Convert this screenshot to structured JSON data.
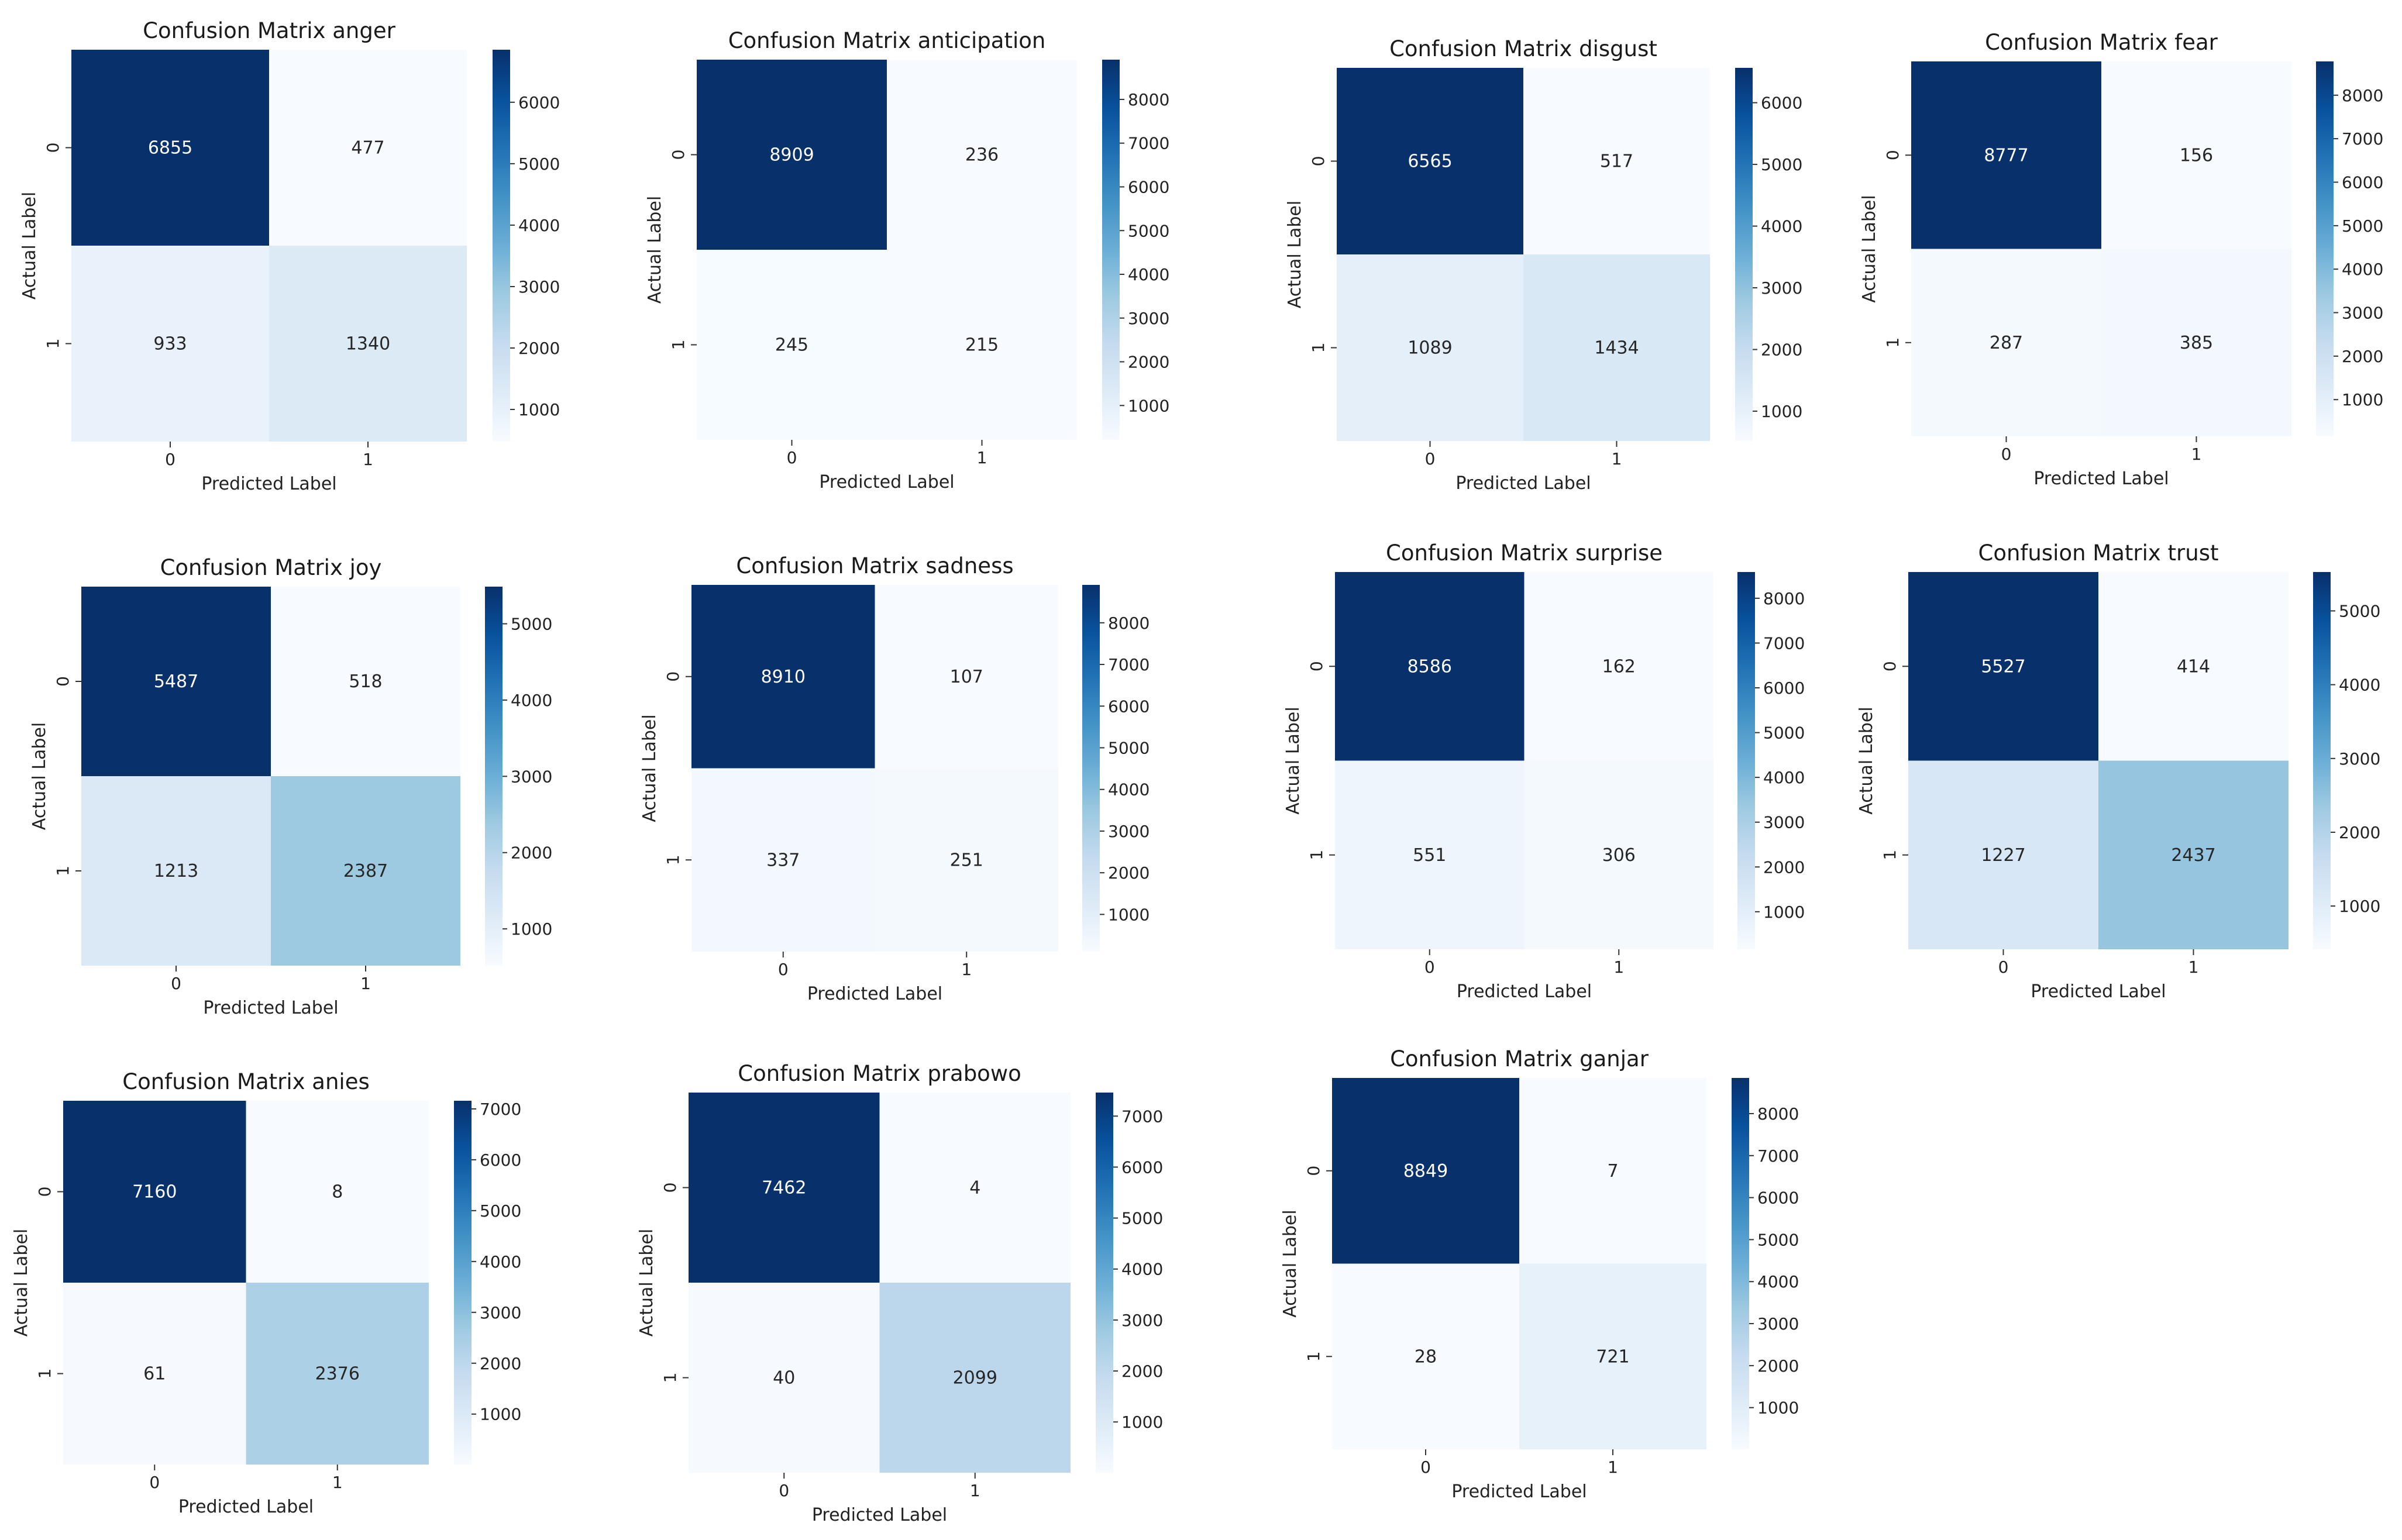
{
  "chart_data": [
    {
      "type": "heatmap",
      "title": "Confusion Matrix anger",
      "xlabel": "Predicted Label",
      "ylabel": "Actual Label",
      "x_categories": [
        "0",
        "1"
      ],
      "y_categories": [
        "0",
        "1"
      ],
      "values": [
        [
          6855,
          477
        ],
        [
          933,
          1340
        ]
      ],
      "colorbar": {
        "cmap": "Blues",
        "ticks": [
          1000,
          2000,
          3000,
          4000,
          5000,
          6000
        ]
      }
    },
    {
      "type": "heatmap",
      "title": "Confusion Matrix anticipation",
      "xlabel": "Predicted Label",
      "ylabel": "Actual Label",
      "x_categories": [
        "0",
        "1"
      ],
      "y_categories": [
        "0",
        "1"
      ],
      "values": [
        [
          8909,
          236
        ],
        [
          245,
          215
        ]
      ],
      "colorbar": {
        "cmap": "Blues",
        "ticks": [
          1000,
          2000,
          3000,
          4000,
          5000,
          6000,
          7000,
          8000
        ]
      }
    },
    {
      "type": "heatmap",
      "title": "Confusion Matrix disgust",
      "xlabel": "Predicted Label",
      "ylabel": "Actual Label",
      "x_categories": [
        "0",
        "1"
      ],
      "y_categories": [
        "0",
        "1"
      ],
      "values": [
        [
          6565,
          517
        ],
        [
          1089,
          1434
        ]
      ],
      "colorbar": {
        "cmap": "Blues",
        "ticks": [
          1000,
          2000,
          3000,
          4000,
          5000,
          6000
        ]
      }
    },
    {
      "type": "heatmap",
      "title": "Confusion Matrix fear",
      "xlabel": "Predicted Label",
      "ylabel": "Actual Label",
      "x_categories": [
        "0",
        "1"
      ],
      "y_categories": [
        "0",
        "1"
      ],
      "values": [
        [
          8777,
          156
        ],
        [
          287,
          385
        ]
      ],
      "colorbar": {
        "cmap": "Blues",
        "ticks": [
          1000,
          2000,
          3000,
          4000,
          5000,
          6000,
          7000,
          8000
        ]
      }
    },
    {
      "type": "heatmap",
      "title": "Confusion Matrix joy",
      "xlabel": "Predicted Label",
      "ylabel": "Actual Label",
      "x_categories": [
        "0",
        "1"
      ],
      "y_categories": [
        "0",
        "1"
      ],
      "values": [
        [
          5487,
          518
        ],
        [
          1213,
          2387
        ]
      ],
      "colorbar": {
        "cmap": "Blues",
        "ticks": [
          1000,
          2000,
          3000,
          4000,
          5000
        ]
      }
    },
    {
      "type": "heatmap",
      "title": "Confusion Matrix sadness",
      "xlabel": "Predicted Label",
      "ylabel": "Actual Label",
      "x_categories": [
        "0",
        "1"
      ],
      "y_categories": [
        "0",
        "1"
      ],
      "values": [
        [
          8910,
          107
        ],
        [
          337,
          251
        ]
      ],
      "colorbar": {
        "cmap": "Blues",
        "ticks": [
          1000,
          2000,
          3000,
          4000,
          5000,
          6000,
          7000,
          8000
        ]
      }
    },
    {
      "type": "heatmap",
      "title": "Confusion Matrix surprise",
      "xlabel": "Predicted Label",
      "ylabel": "Actual Label",
      "x_categories": [
        "0",
        "1"
      ],
      "y_categories": [
        "0",
        "1"
      ],
      "values": [
        [
          8586,
          162
        ],
        [
          551,
          306
        ]
      ],
      "colorbar": {
        "cmap": "Blues",
        "ticks": [
          1000,
          2000,
          3000,
          4000,
          5000,
          6000,
          7000,
          8000
        ]
      }
    },
    {
      "type": "heatmap",
      "title": "Confusion Matrix trust",
      "xlabel": "Predicted Label",
      "ylabel": "Actual Label",
      "x_categories": [
        "0",
        "1"
      ],
      "y_categories": [
        "0",
        "1"
      ],
      "values": [
        [
          5527,
          414
        ],
        [
          1227,
          2437
        ]
      ],
      "colorbar": {
        "cmap": "Blues",
        "ticks": [
          1000,
          2000,
          3000,
          4000,
          5000
        ]
      }
    },
    {
      "type": "heatmap",
      "title": "Confusion Matrix anies",
      "xlabel": "Predicted Label",
      "ylabel": "Actual Label",
      "x_categories": [
        "0",
        "1"
      ],
      "y_categories": [
        "0",
        "1"
      ],
      "values": [
        [
          7160,
          8
        ],
        [
          61,
          2376
        ]
      ],
      "colorbar": {
        "cmap": "Blues",
        "ticks": [
          1000,
          2000,
          3000,
          4000,
          5000,
          6000,
          7000
        ]
      }
    },
    {
      "type": "heatmap",
      "title": "Confusion Matrix prabowo",
      "xlabel": "Predicted Label",
      "ylabel": "Actual Label",
      "x_categories": [
        "0",
        "1"
      ],
      "y_categories": [
        "0",
        "1"
      ],
      "values": [
        [
          7462,
          4
        ],
        [
          40,
          2099
        ]
      ],
      "colorbar": {
        "cmap": "Blues",
        "ticks": [
          1000,
          2000,
          3000,
          4000,
          5000,
          6000,
          7000
        ]
      }
    },
    {
      "type": "heatmap",
      "title": "Confusion Matrix ganjar",
      "xlabel": "Predicted Label",
      "ylabel": "Actual Label",
      "x_categories": [
        "0",
        "1"
      ],
      "y_categories": [
        "0",
        "1"
      ],
      "values": [
        [
          8849,
          7
        ],
        [
          28,
          721
        ]
      ],
      "colorbar": {
        "cmap": "Blues",
        "ticks": [
          1000,
          2000,
          3000,
          4000,
          5000,
          6000,
          7000,
          8000
        ]
      }
    }
  ]
}
